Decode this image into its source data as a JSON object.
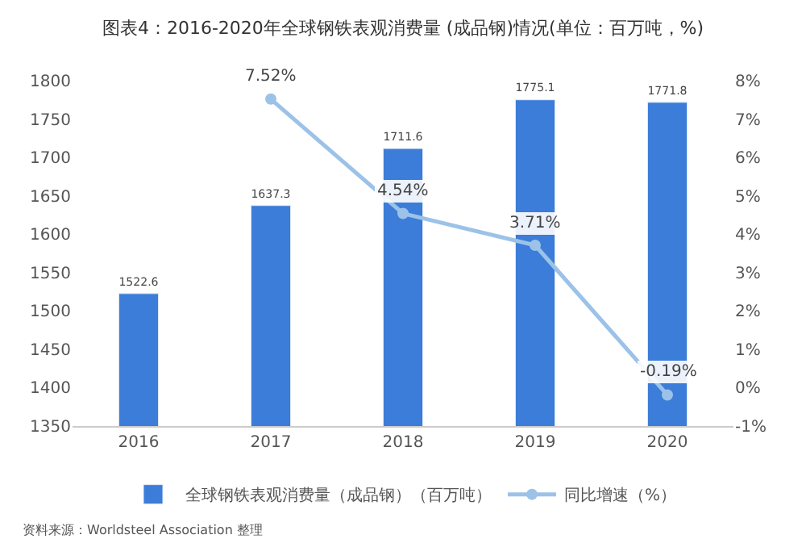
{
  "chart_data": {
    "type": "bar",
    "title": "图表4：2016-2020年全球钢铁表观消费量 (成品钢)情况(单位：百万吨，%)",
    "categories": [
      "2016",
      "2017",
      "2018",
      "2019",
      "2020"
    ],
    "series": [
      {
        "name": "全球钢铁表观消费量（成品钢）（百万吨）",
        "color": "#3b7dd8",
        "values": [
          1522.6,
          1637.3,
          1711.6,
          1775.1,
          1771.8
        ],
        "value_labels": [
          "1522.6",
          "1637.3",
          "1711.6",
          "1775.1",
          "1771.8"
        ]
      },
      {
        "name": "同比增速（%）",
        "type": "line",
        "axis": "y2",
        "color": "#9cc2e8",
        "marker": "circle",
        "values": [
          null,
          7.52,
          4.54,
          3.71,
          -0.19
        ],
        "value_labels": [
          null,
          "7.52%",
          "4.54%",
          "3.71%",
          "-0.19%"
        ]
      }
    ],
    "ylim": [
      1350,
      1800
    ],
    "yticks": [
      1350,
      1400,
      1450,
      1500,
      1550,
      1600,
      1650,
      1700,
      1750,
      1800
    ],
    "y2lim": [
      -1,
      8
    ],
    "y2ticks": [
      {
        "value": -1,
        "label": "-1%"
      },
      {
        "value": 0,
        "label": "0%"
      },
      {
        "value": 1,
        "label": "1%"
      },
      {
        "value": 2,
        "label": "2%"
      },
      {
        "value": 3,
        "label": "3%"
      },
      {
        "value": 4,
        "label": "4%"
      },
      {
        "value": 5,
        "label": "5%"
      },
      {
        "value": 6,
        "label": "6%"
      },
      {
        "value": 7,
        "label": "7%"
      },
      {
        "value": 8,
        "label": "8%"
      }
    ],
    "legend": "bottom",
    "annotations": [
      "资料来源：Worldsteel Association 整理"
    ]
  }
}
